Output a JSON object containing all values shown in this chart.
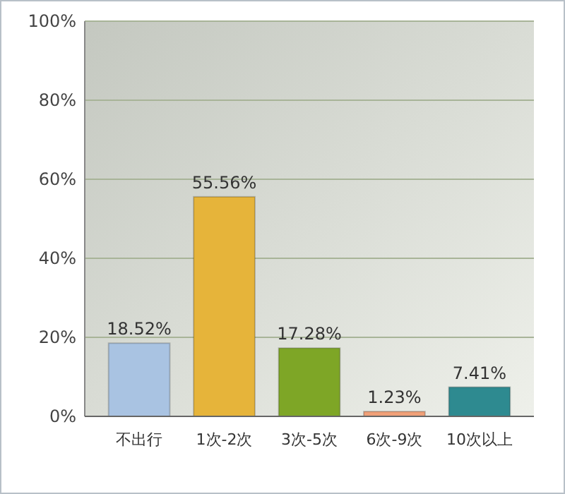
{
  "chart_data": {
    "type": "bar",
    "categories": [
      "不出行",
      "1次-2次",
      "3次-5次",
      "6次-9次",
      "10次以上"
    ],
    "values": [
      18.52,
      55.56,
      17.28,
      1.23,
      7.41
    ],
    "colors": [
      "#a9c3e2",
      "#e6b43a",
      "#7ea626",
      "#f0a078",
      "#2e8a90"
    ],
    "value_labels": [
      "18.52%",
      "55.56%",
      "17.28%",
      "1.23%",
      "7.41%"
    ],
    "ylim": [
      0,
      100
    ],
    "yticks": [
      {
        "value": 0,
        "label": "0%"
      },
      {
        "value": 20,
        "label": "20%"
      },
      {
        "value": 40,
        "label": "40%"
      },
      {
        "value": 60,
        "label": "60%"
      },
      {
        "value": 80,
        "label": "80%"
      },
      {
        "value": 100,
        "label": "100%"
      }
    ],
    "grid": "y"
  }
}
